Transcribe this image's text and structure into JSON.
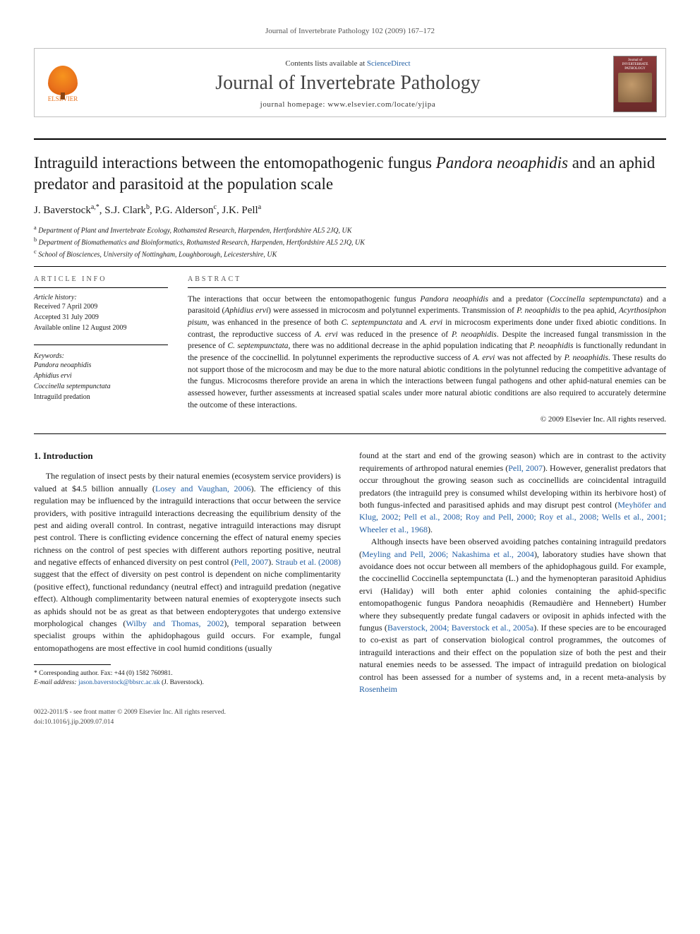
{
  "running_header": "Journal of Invertebrate Pathology 102 (2009) 167–172",
  "masthead": {
    "contents_line_prefix": "Contents lists available at ",
    "sd_text": "ScienceDirect",
    "journal_name": "Journal of Invertebrate Pathology",
    "homepage_prefix": "journal homepage: ",
    "homepage_url": "www.elsevier.com/locate/yjipa",
    "elsevier_label": "ELSEVIER",
    "cover_title": "Journal of INVERTEBRATE PATHOLOGY"
  },
  "title_plain_pre": "Intraguild interactions between the entomopathogenic fungus ",
  "title_italic": "Pandora neoaphidis",
  "title_plain_post": " and an aphid predator and parasitoid at the population scale",
  "authors_html": "J. Baverstock<sup>a,*</sup>, S.J. Clark<sup>b</sup>, P.G. Alderson<sup>c</sup>, J.K. Pell<sup>a</sup>",
  "affiliations": [
    "<sup>a</sup> Department of Plant and Invertebrate Ecology, Rothamsted Research, Harpenden, Hertfordshire AL5 2JQ, UK",
    "<sup>b</sup> Department of Biomathematics and Bioinformatics, Rothamsted Research, Harpenden, Hertfordshire AL5 2JQ, UK",
    "<sup>c</sup> School of Biosciences, University of Nottingham, Loughborough, Leicestershire, UK"
  ],
  "info": {
    "heading": "ARTICLE INFO",
    "history_label": "Article history:",
    "history": [
      "Received 7 April 2009",
      "Accepted 31 July 2009",
      "Available online 12 August 2009"
    ],
    "keywords_label": "Keywords:",
    "keywords": [
      "Pandora neoaphidis",
      "Aphidius ervi",
      "Coccinella septempunctata",
      "Intraguild predation"
    ]
  },
  "abstract": {
    "heading": "ABSTRACT",
    "text": "The interactions that occur between the entomopathogenic fungus <span class='italic'>Pandora neoaphidis</span> and a predator (<span class='italic'>Coccinella septempunctata</span>) and a parasitoid (<span class='italic'>Aphidius ervi</span>) were assessed in microcosm and polytunnel experiments. Transmission of <span class='italic'>P. neoaphidis</span> to the pea aphid, <span class='italic'>Acyrthosiphon pisum</span>, was enhanced in the presence of both <span class='italic'>C. septempunctata</span> and <span class='italic'>A. ervi</span> in microcosm experiments done under fixed abiotic conditions. In contrast, the reproductive success of <span class='italic'>A. ervi</span> was reduced in the presence of <span class='italic'>P. neoaphidis</span>. Despite the increased fungal transmission in the presence of <span class='italic'>C. septempunctata</span>, there was no additional decrease in the aphid population indicating that <span class='italic'>P. neoaphidis</span> is functionally redundant in the presence of the coccinellid. In polytunnel experiments the reproductive success of <span class='italic'>A. ervi</span> was not affected by <span class='italic'>P. neoaphidis</span>. These results do not support those of the microcosm and may be due to the more natural abiotic conditions in the polytunnel reducing the competitive advantage of the fungus. Microcosms therefore provide an arena in which the interactions between fungal pathogens and other aphid-natural enemies can be assessed however, further assessments at increased spatial scales under more natural abiotic conditions are also required to accurately determine the outcome of these interactions.",
    "copyright": "© 2009 Elsevier Inc. All rights reserved."
  },
  "body": {
    "section_heading": "1. Introduction",
    "col1_paras": [
      "The regulation of insect pests by their natural enemies (ecosystem service providers) is valued at $4.5 billion annually (<span class='ref-link'>Losey and Vaughan, 2006</span>). The efficiency of this regulation may be influenced by the intraguild interactions that occur between the service providers, with positive intraguild interactions decreasing the equilibrium density of the pest and aiding overall control. In contrast, negative intraguild interactions may disrupt pest control. There is conflicting evidence concerning the effect of natural enemy species richness on the control of pest species with different authors reporting positive, neutral and negative effects of enhanced diversity on pest control (<span class='ref-link'>Pell, 2007</span>). <span class='ref-link'>Straub et al. (2008)</span> suggest that the effect of diversity on pest control is dependent on niche complimentarity (positive effect), functional redundancy (neutral effect) and intraguild predation (negative effect). Although complimentarity between natural enemies of exopterygote insects such as aphids should not be as great as that between endopterygotes that undergo extensive morphological changes (<span class='ref-link'>Wilby and Thomas, 2002</span>), temporal separation between specialist groups within the aphidophagous guild occurs. For example, fungal entomopathogens are most effective in cool humid conditions (usually"
    ],
    "col2_paras": [
      "found at the start and end of the growing season) which are in contrast to the activity requirements of arthropod natural enemies (<span class='ref-link'>Pell, 2007</span>). However, generalist predators that occur throughout the growing season such as coccinellids are coincidental intraguild predators (the intraguild prey is consumed whilst developing within its herbivore host) of both fungus-infected and parasitised aphids and may disrupt pest control (<span class='ref-link'>Meyhöfer and Klug, 2002; Pell et al., 2008; Roy and Pell, 2000; Roy et al., 2008; Wells et al., 2001; Wheeler et al., 1968</span>).",
      "Although insects have been observed avoiding patches containing intraguild predators (<span class='ref-link'>Meyling and Pell, 2006; Nakashima et al., 2004</span>), laboratory studies have shown that avoidance does not occur between all members of the aphidophagous guild. For example, the coccinellid <span class='italic'>Coccinella septempunctata</span> (L.) and the hymenopteran parasitoid <span class='italic'>Aphidius ervi</span> (Haliday) will both enter aphid colonies containing the aphid-specific entomopathogenic fungus <span class='italic'>Pandora neoaphidis</span> (Remaudière and Hennebert) Humber where they subsequently predate fungal cadavers or oviposit in aphids infected with the fungus (<span class='ref-link'>Baverstock, 2004; Baverstock et al., 2005a</span>). If these species are to be encouraged to co-exist as part of conservation biological control programmes, the outcomes of intraguild interactions and their effect on the population size of both the pest and their natural enemies needs to be assessed. The impact of intraguild predation on biological control has been assessed for a number of systems and, in a recent meta-analysis by <span class='ref-link'>Rosenheim</span>"
    ]
  },
  "footnote": {
    "corr": "* Corresponding author. Fax: +44 (0) 1582 760981.",
    "email_label": "E-mail address:",
    "email": "jason.baverstock@bbsrc.ac.uk",
    "email_tail": "(J. Baverstock)."
  },
  "footer": {
    "line1": "0022-2011/$ - see front matter © 2009 Elsevier Inc. All rights reserved.",
    "line2": "doi:10.1016/j.jip.2009.07.014"
  },
  "colors": {
    "link": "#2360a5",
    "elsevier_orange": "#e9711c",
    "text": "#1a1a1a"
  }
}
